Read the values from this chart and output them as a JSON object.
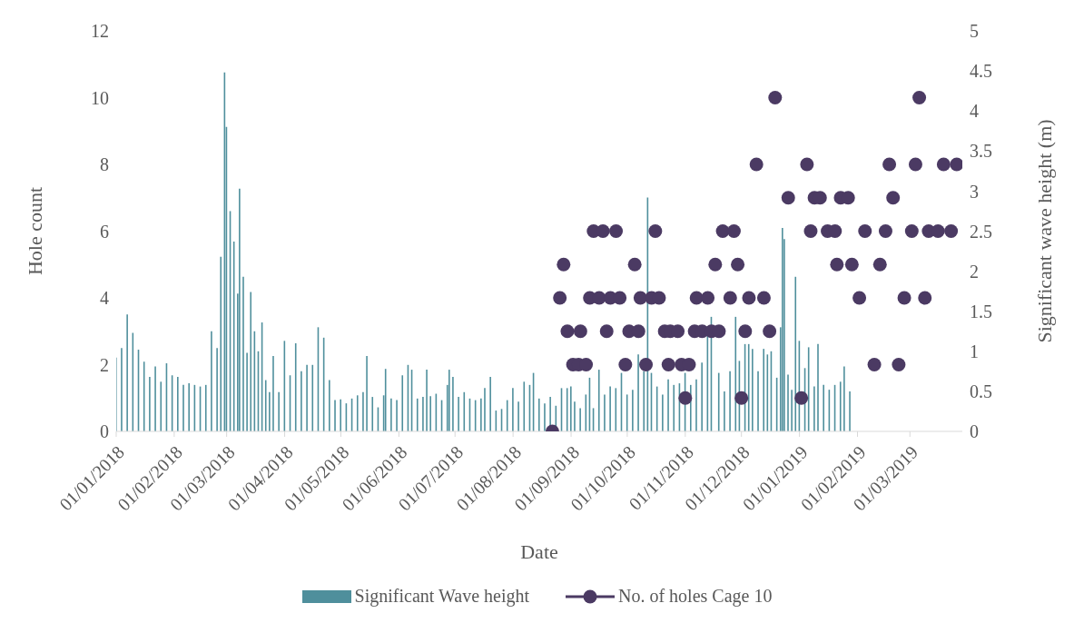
{
  "chart_data": {
    "type": "bar",
    "xlabel": "Date",
    "ylabel": "Hole count",
    "y2label": "Significant wave height (m)",
    "xlim": [
      "2018-01-01",
      "2019-03-29"
    ],
    "xticks": [
      {
        "value": "2018-01-01",
        "label": "01/01/2018"
      },
      {
        "value": "2018-02-01",
        "label": "01/02/2018"
      },
      {
        "value": "2018-03-01",
        "label": "01/03/2018"
      },
      {
        "value": "2018-04-01",
        "label": "01/04/2018"
      },
      {
        "value": "2018-05-01",
        "label": "01/05/2018"
      },
      {
        "value": "2018-06-01",
        "label": "01/06/2018"
      },
      {
        "value": "2018-07-01",
        "label": "01/07/2018"
      },
      {
        "value": "2018-08-01",
        "label": "01/08/2018"
      },
      {
        "value": "2018-09-01",
        "label": "01/09/2018"
      },
      {
        "value": "2018-10-01",
        "label": "01/10/2018"
      },
      {
        "value": "2018-11-01",
        "label": "01/11/2018"
      },
      {
        "value": "2018-12-01",
        "label": "01/12/2018"
      },
      {
        "value": "2019-01-01",
        "label": "01/01/2019"
      },
      {
        "value": "2019-02-01",
        "label": "01/02/2019"
      },
      {
        "value": "2019-03-01",
        "label": "01/03/2019"
      }
    ],
    "ylim": [
      0,
      12
    ],
    "yticks": [
      0,
      2,
      4,
      6,
      8,
      10,
      12
    ],
    "y2lim": [
      0,
      5
    ],
    "y2ticks": [
      0,
      0.5,
      1,
      1.5,
      2,
      2.5,
      3,
      3.5,
      4,
      4.5,
      5
    ],
    "grid": false,
    "legend": "bottom",
    "marker": "circle",
    "series": [
      {
        "name": "Significant Wave height",
        "axis": "y2",
        "color": "#4f8f9c",
        "x": [
          "2018-01-01",
          "2018-01-04",
          "2018-01-07",
          "2018-01-10",
          "2018-01-13",
          "2018-01-16",
          "2018-01-19",
          "2018-01-22",
          "2018-01-25",
          "2018-01-28",
          "2018-01-31",
          "2018-02-03",
          "2018-02-06",
          "2018-02-09",
          "2018-02-12",
          "2018-02-15",
          "2018-02-18",
          "2018-02-21",
          "2018-02-24",
          "2018-02-26",
          "2018-02-28",
          "2018-03-01",
          "2018-03-03",
          "2018-03-05",
          "2018-03-07",
          "2018-03-08",
          "2018-03-10",
          "2018-03-12",
          "2018-03-14",
          "2018-03-16",
          "2018-03-18",
          "2018-03-20",
          "2018-03-22",
          "2018-03-24",
          "2018-03-26",
          "2018-03-29",
          "2018-04-01",
          "2018-04-04",
          "2018-04-07",
          "2018-04-10",
          "2018-04-13",
          "2018-04-16",
          "2018-04-19",
          "2018-04-22",
          "2018-04-25",
          "2018-04-28",
          "2018-05-01",
          "2018-05-04",
          "2018-05-07",
          "2018-05-10",
          "2018-05-13",
          "2018-05-15",
          "2018-05-18",
          "2018-05-21",
          "2018-05-24",
          "2018-05-25",
          "2018-05-28",
          "2018-05-31",
          "2018-06-03",
          "2018-06-06",
          "2018-06-08",
          "2018-06-11",
          "2018-06-14",
          "2018-06-16",
          "2018-06-18",
          "2018-06-21",
          "2018-06-24",
          "2018-06-27",
          "2018-06-28",
          "2018-06-30",
          "2018-07-03",
          "2018-07-06",
          "2018-07-09",
          "2018-07-12",
          "2018-07-15",
          "2018-07-17",
          "2018-07-20",
          "2018-07-23",
          "2018-07-26",
          "2018-07-29",
          "2018-08-01",
          "2018-08-04",
          "2018-08-07",
          "2018-08-10",
          "2018-08-12",
          "2018-08-15",
          "2018-08-18",
          "2018-08-21",
          "2018-08-24",
          "2018-08-27",
          "2018-08-30",
          "2018-09-01",
          "2018-09-03",
          "2018-09-06",
          "2018-09-09",
          "2018-09-11",
          "2018-09-13",
          "2018-09-16",
          "2018-09-19",
          "2018-09-22",
          "2018-09-25",
          "2018-09-28",
          "2018-10-01",
          "2018-10-04",
          "2018-10-07",
          "2018-10-10",
          "2018-10-12",
          "2018-10-14",
          "2018-10-17",
          "2018-10-20",
          "2018-10-23",
          "2018-10-26",
          "2018-10-29",
          "2018-11-01",
          "2018-11-04",
          "2018-11-07",
          "2018-11-10",
          "2018-11-13",
          "2018-11-15",
          "2018-11-17",
          "2018-11-19",
          "2018-11-22",
          "2018-11-25",
          "2018-11-28",
          "2018-11-30",
          "2018-12-03",
          "2018-12-05",
          "2018-12-07",
          "2018-12-10",
          "2018-12-13",
          "2018-12-15",
          "2018-12-17",
          "2018-12-20",
          "2018-12-22",
          "2018-12-23",
          "2018-12-24",
          "2018-12-26",
          "2018-12-28",
          "2018-12-30",
          "2019-01-01",
          "2019-01-04",
          "2019-01-06",
          "2019-01-09",
          "2019-01-11",
          "2019-01-14",
          "2019-01-17",
          "2019-01-20",
          "2019-01-23",
          "2019-01-25",
          "2019-01-28"
        ],
        "values": [
          0.92,
          1.04,
          1.46,
          1.23,
          1.02,
          0.87,
          0.68,
          0.81,
          0.62,
          0.85,
          0.7,
          0.68,
          0.58,
          0.6,
          0.58,
          0.56,
          0.58,
          1.25,
          1.04,
          2.18,
          4.48,
          3.8,
          2.75,
          2.37,
          1.72,
          3.03,
          1.93,
          0.98,
          1.74,
          1.25,
          1.0,
          1.36,
          0.64,
          0.49,
          0.94,
          0.49,
          1.13,
          0.7,
          1.1,
          0.75,
          0.83,
          0.83,
          1.3,
          1.17,
          0.64,
          0.39,
          0.4,
          0.35,
          0.41,
          0.45,
          0.49,
          0.94,
          0.43,
          0.3,
          0.45,
          0.78,
          0.41,
          0.39,
          0.7,
          0.83,
          0.77,
          0.41,
          0.43,
          0.77,
          0.44,
          0.47,
          0.39,
          0.58,
          0.77,
          0.68,
          0.43,
          0.49,
          0.41,
          0.39,
          0.41,
          0.54,
          0.68,
          0.26,
          0.28,
          0.39,
          0.54,
          0.37,
          0.62,
          0.58,
          0.73,
          0.41,
          0.35,
          0.43,
          0.32,
          0.54,
          0.54,
          0.56,
          0.37,
          0.29,
          0.46,
          0.67,
          0.29,
          0.77,
          0.46,
          0.56,
          0.54,
          0.73,
          0.46,
          0.52,
          0.96,
          0.75,
          2.92,
          0.73,
          0.56,
          0.46,
          0.65,
          0.58,
          0.6,
          0.73,
          0.58,
          0.65,
          0.86,
          1.22,
          1.43,
          null,
          0.73,
          0.5,
          0.75,
          1.43,
          0.88,
          1.09,
          1.09,
          1.03,
          0.75,
          1.03,
          0.96,
          1.0,
          0.67,
          1.3,
          2.54,
          2.4,
          0.71,
          0.52,
          1.93,
          1.13,
          0.79,
          1.05,
          0.56,
          1.09,
          0.58,
          0.52,
          0.58,
          0.62,
          0.81,
          0.5
        ]
      },
      {
        "name": "No. of holes Cage 10",
        "type": "scatter",
        "axis": "y",
        "color": "#4b3a63",
        "x": [
          "2018-08-22",
          "2018-08-26",
          "2018-08-28",
          "2018-08-30",
          "2018-09-02",
          "2018-09-05",
          "2018-09-06",
          "2018-09-09",
          "2018-09-11",
          "2018-09-13",
          "2018-09-16",
          "2018-09-18",
          "2018-09-20",
          "2018-09-22",
          "2018-09-25",
          "2018-09-27",
          "2018-09-30",
          "2018-10-02",
          "2018-10-05",
          "2018-10-07",
          "2018-10-08",
          "2018-10-11",
          "2018-10-14",
          "2018-10-16",
          "2018-10-18",
          "2018-10-21",
          "2018-10-23",
          "2018-10-24",
          "2018-10-28",
          "2018-10-30",
          "2018-11-01",
          "2018-11-03",
          "2018-11-06",
          "2018-11-07",
          "2018-11-10",
          "2018-11-13",
          "2018-11-15",
          "2018-11-17",
          "2018-11-19",
          "2018-11-21",
          "2018-11-25",
          "2018-11-27",
          "2018-11-29",
          "2018-12-01",
          "2018-12-03",
          "2018-12-05",
          "2018-12-09",
          "2018-12-13",
          "2018-12-16",
          "2018-12-19",
          "2018-12-26",
          "2019-01-02",
          "2019-01-05",
          "2019-01-07",
          "2019-01-09",
          "2019-01-12",
          "2019-01-16",
          "2019-01-20",
          "2019-01-21",
          "2019-01-23",
          "2019-01-27",
          "2019-01-29",
          "2019-02-02",
          "2019-02-05",
          "2019-02-10",
          "2019-02-13",
          "2019-02-16",
          "2019-02-18",
          "2019-02-20",
          "2019-02-23",
          "2019-02-26",
          "2019-03-02",
          "2019-03-04",
          "2019-03-06",
          "2019-03-09",
          "2019-03-11",
          "2019-03-16",
          "2019-03-19",
          "2019-03-23",
          "2019-03-26"
        ],
        "values": [
          0,
          4,
          5,
          3,
          2,
          2,
          3,
          2,
          4,
          6,
          4,
          6,
          3,
          4,
          6,
          4,
          2,
          3,
          5,
          3,
          4,
          2,
          4,
          6,
          4,
          3,
          2,
          3,
          3,
          2,
          1,
          2,
          3,
          4,
          3,
          4,
          3,
          5,
          3,
          6,
          4,
          6,
          5,
          1,
          3,
          4,
          8,
          4,
          3,
          10,
          7,
          1,
          8,
          6,
          7,
          7,
          6,
          6,
          5,
          7,
          7,
          5,
          4,
          6,
          2,
          5,
          6,
          8,
          7,
          2,
          4,
          6,
          8,
          10,
          4,
          6,
          6,
          8,
          6,
          8
        ]
      }
    ]
  }
}
